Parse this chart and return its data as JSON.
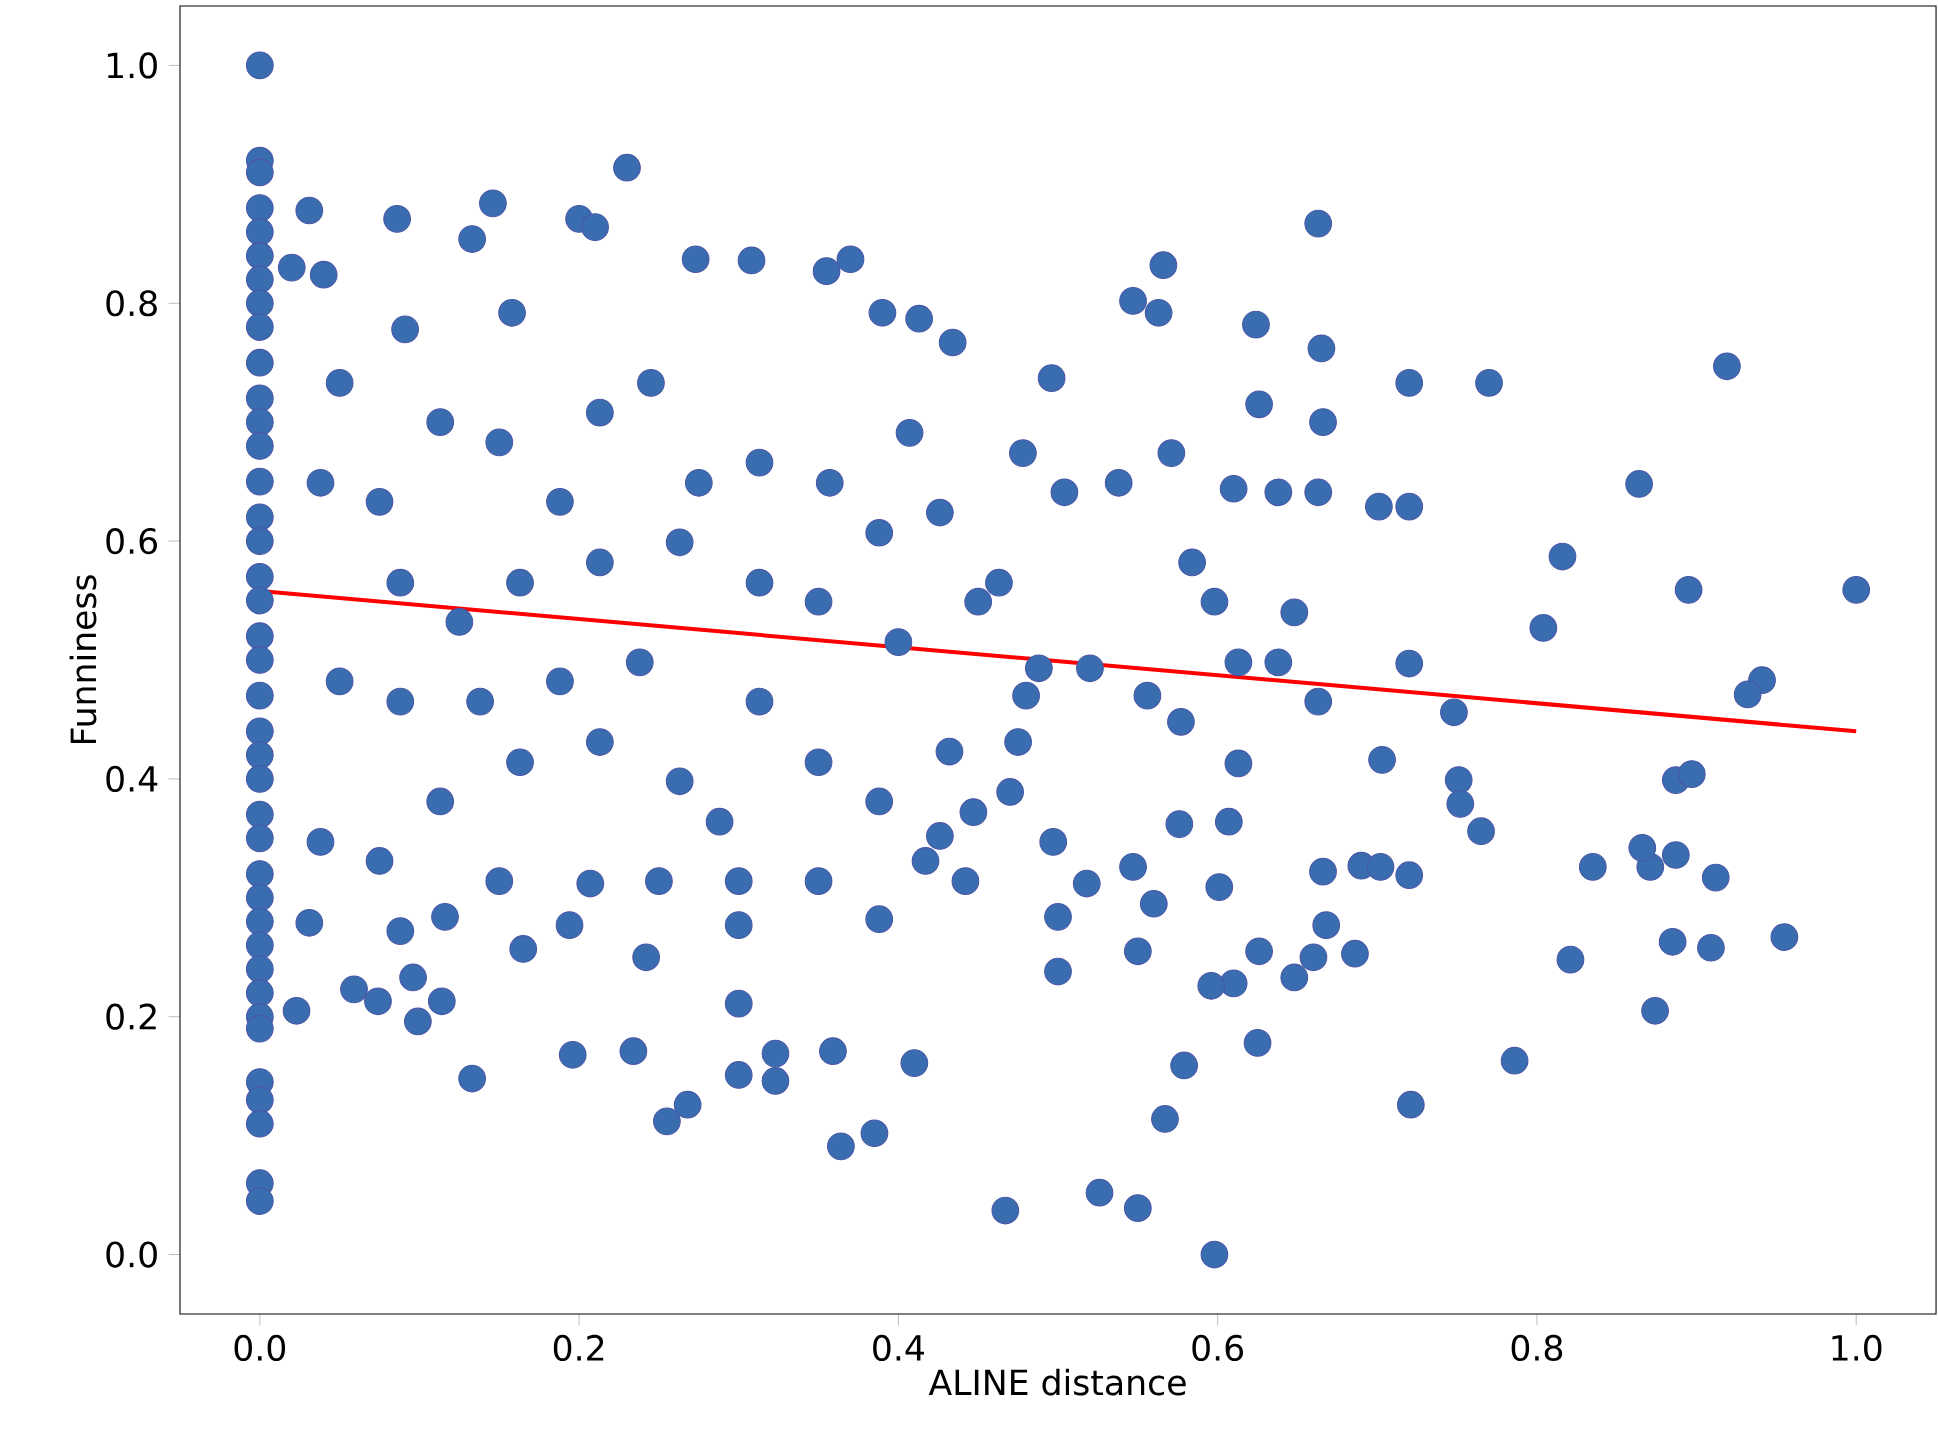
{
  "chart_data": {
    "type": "scatter",
    "xlabel": "ALINE distance",
    "ylabel": "Funniness",
    "xlim": [
      -0.05,
      1.05
    ],
    "ylim": [
      -0.05,
      1.05
    ],
    "xticks": [
      {
        "value": 0,
        "label": "0.0"
      },
      {
        "value": 0.2,
        "label": "0.2"
      },
      {
        "value": 0.4,
        "label": "0.4"
      },
      {
        "value": 0.6,
        "label": "0.6"
      },
      {
        "value": 0.8,
        "label": "0.8"
      },
      {
        "value": 1.0,
        "label": "1.0"
      }
    ],
    "yticks": [
      {
        "value": 0,
        "label": "0.0"
      },
      {
        "value": 0.2,
        "label": "0.2"
      },
      {
        "value": 0.4,
        "label": "0.4"
      },
      {
        "value": 0.6,
        "label": "0.6"
      },
      {
        "value": 0.8,
        "label": "0.8"
      },
      {
        "value": 1.0,
        "label": "1.0"
      }
    ],
    "series": [
      {
        "marker": "circle",
        "color": "#3a6db0",
        "x": [
          0,
          0,
          0,
          0,
          0,
          0,
          0,
          0,
          0,
          0,
          0,
          0,
          0,
          0,
          0,
          0,
          0,
          0,
          0,
          0,
          0,
          0,
          0,
          0,
          0,
          0,
          0,
          0,
          0,
          0,
          0,
          0,
          0,
          0,
          0,
          0,
          0,
          0,
          0,
          0.031,
          0.02,
          0.04,
          0.086,
          0.146,
          0.23,
          0.091,
          0.133,
          0.158,
          0.2,
          0.21,
          0.273,
          0.308,
          0.355,
          0.37,
          0.39,
          0.413,
          0.434,
          0.496,
          0.547,
          0.566,
          0.563,
          0.624,
          0.663,
          0.665,
          0.72,
          0.77,
          0.919,
          0.864,
          0.816,
          0.804,
          0.895,
          1.0,
          0.941,
          0.932,
          0.748,
          0.72,
          0.703,
          0.751,
          0.752,
          0.765,
          0.835,
          0.871,
          0.866,
          0.887,
          0.897,
          0.887,
          0.912,
          0.885,
          0.909,
          0.955,
          0.821,
          0.874,
          0.786,
          0.721,
          0.72,
          0.69,
          0.702,
          0.666,
          0.668,
          0.66,
          0.686,
          0.648,
          0.626,
          0.625,
          0.61,
          0.596,
          0.601,
          0.607,
          0.613,
          0.576,
          0.56,
          0.579,
          0.567,
          0.55,
          0.598,
          0.526,
          0.467,
          0.5,
          0.55,
          0.547,
          0.5,
          0.497,
          0.518,
          0.41,
          0.385,
          0.364,
          0.359,
          0.323,
          0.323,
          0.3,
          0.3,
          0.268,
          0.255,
          0.234,
          0.196,
          0.133,
          0.096,
          0.114,
          0.099,
          0.059,
          0.074,
          0.031,
          0.023,
          0.088,
          0.116,
          0.165,
          0.207,
          0.242,
          0.25,
          0.194,
          0.3,
          0.388,
          0.417,
          0.442,
          0.426,
          0.447,
          0.432,
          0.47,
          0.475,
          0.48,
          0.52,
          0.488,
          0.556,
          0.577,
          0.613,
          0.638,
          0.663,
          0.648,
          0.598,
          0.61,
          0.638,
          0.663,
          0.701,
          0.72,
          0.666,
          0.626,
          0.571,
          0.584,
          0.538,
          0.478,
          0.504,
          0.463,
          0.426,
          0.388,
          0.407,
          0.357,
          0.313,
          0.275,
          0.245,
          0.213,
          0.188,
          0.15,
          0.113,
          0.075,
          0.038,
          0.05,
          0.088,
          0.125,
          0.163,
          0.213,
          0.263,
          0.313,
          0.35,
          0.4,
          0.45,
          0.238,
          0.188,
          0.138,
          0.088,
          0.05,
          0.163,
          0.213,
          0.263,
          0.313,
          0.35,
          0.388,
          0.288,
          0.113,
          0.038,
          0.075,
          0.15,
          0.35,
          0.3
        ],
        "values": [
          1.0,
          0.92,
          0.91,
          0.88,
          0.86,
          0.84,
          0.82,
          0.8,
          0.78,
          0.75,
          0.72,
          0.7,
          0.68,
          0.65,
          0.62,
          0.6,
          0.57,
          0.55,
          0.52,
          0.5,
          0.47,
          0.44,
          0.42,
          0.4,
          0.37,
          0.35,
          0.32,
          0.3,
          0.28,
          0.26,
          0.24,
          0.22,
          0.2,
          0.19,
          0.145,
          0.13,
          0.11,
          0.06,
          0.045,
          0.878,
          0.83,
          0.824,
          0.871,
          0.884,
          0.914,
          0.778,
          0.854,
          0.792,
          0.871,
          0.864,
          0.837,
          0.836,
          0.827,
          0.837,
          0.792,
          0.787,
          0.767,
          0.737,
          0.802,
          0.832,
          0.792,
          0.782,
          0.867,
          0.762,
          0.733,
          0.733,
          0.747,
          0.648,
          0.587,
          0.527,
          0.559,
          0.559,
          0.483,
          0.471,
          0.456,
          0.497,
          0.416,
          0.399,
          0.379,
          0.356,
          0.326,
          0.326,
          0.342,
          0.399,
          0.404,
          0.336,
          0.317,
          0.263,
          0.258,
          0.267,
          0.248,
          0.205,
          0.163,
          0.126,
          0.319,
          0.327,
          0.326,
          0.322,
          0.277,
          0.25,
          0.253,
          0.233,
          0.255,
          0.178,
          0.228,
          0.226,
          0.309,
          0.364,
          0.413,
          0.362,
          0.295,
          0.159,
          0.114,
          0.039,
          0.0,
          0.052,
          0.037,
          0.238,
          0.255,
          0.326,
          0.284,
          0.347,
          0.312,
          0.161,
          0.102,
          0.091,
          0.171,
          0.169,
          0.146,
          0.151,
          0.211,
          0.126,
          0.112,
          0.171,
          0.168,
          0.148,
          0.233,
          0.213,
          0.196,
          0.223,
          0.213,
          0.279,
          0.205,
          0.272,
          0.284,
          0.257,
          0.312,
          0.25,
          0.314,
          0.277,
          0.277,
          0.282,
          0.331,
          0.314,
          0.352,
          0.372,
          0.423,
          0.389,
          0.431,
          0.47,
          0.493,
          0.493,
          0.47,
          0.448,
          0.498,
          0.498,
          0.465,
          0.54,
          0.549,
          0.644,
          0.641,
          0.641,
          0.629,
          0.629,
          0.7,
          0.715,
          0.674,
          0.582,
          0.649,
          0.674,
          0.641,
          0.565,
          0.624,
          0.607,
          0.691,
          0.649,
          0.666,
          0.649,
          0.733,
          0.708,
          0.633,
          0.683,
          0.7,
          0.633,
          0.649,
          0.733,
          0.565,
          0.532,
          0.565,
          0.582,
          0.599,
          0.565,
          0.549,
          0.515,
          0.549,
          0.498,
          0.482,
          0.465,
          0.465,
          0.482,
          0.414,
          0.431,
          0.398,
          0.465,
          0.414,
          0.381,
          0.364,
          0.381,
          0.347,
          0.331,
          0.314,
          0.314,
          0.314
        ]
      },
      {
        "type": "line",
        "color": "#ff0000",
        "x": [
          0,
          1.0
        ],
        "values": [
          0.558,
          0.44
        ]
      }
    ]
  }
}
